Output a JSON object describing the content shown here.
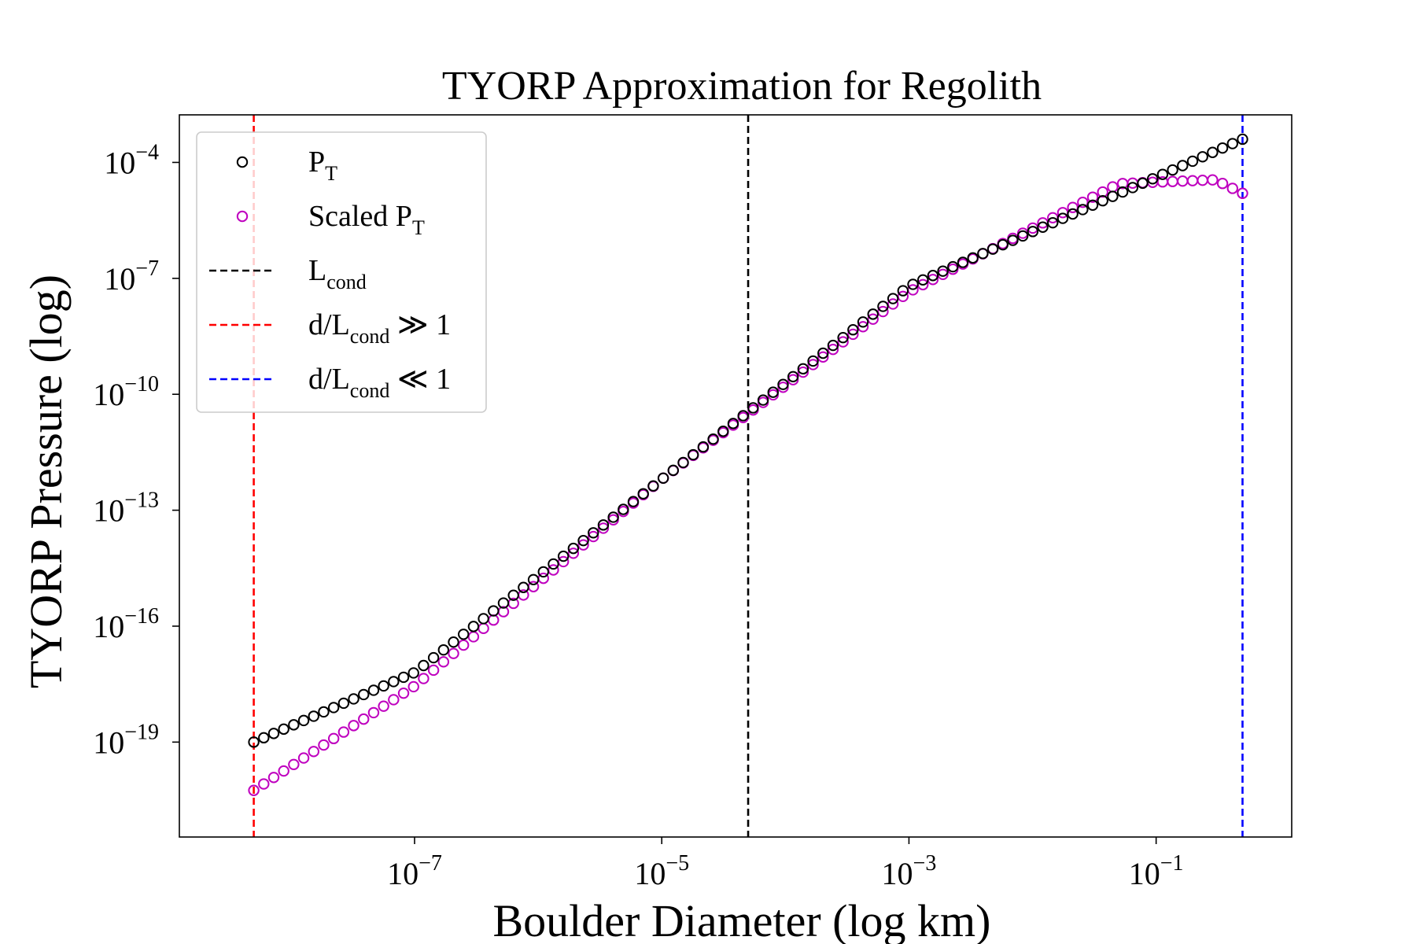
{
  "chart_data": {
    "type": "scatter",
    "title": "TYORP Approximation for Regolith",
    "xlabel": "Boulder Diameter (log km)",
    "ylabel": "TYORP Pressure (log)",
    "x_scale": "log",
    "y_scale": "log",
    "xlim": [
      1.25e-09,
      1.25
    ],
    "ylim": [
      3.5e-22,
      0.0017
    ],
    "x_ticks": [
      {
        "base": "10",
        "exp": "−7",
        "value": 1e-07
      },
      {
        "base": "10",
        "exp": "−5",
        "value": 1e-05
      },
      {
        "base": "10",
        "exp": "−3",
        "value": 0.001
      },
      {
        "base": "10",
        "exp": "−1",
        "value": 0.1
      }
    ],
    "y_ticks": [
      {
        "base": "10",
        "exp": "−19",
        "value": 1e-19
      },
      {
        "base": "10",
        "exp": "−16",
        "value": 1e-16
      },
      {
        "base": "10",
        "exp": "−13",
        "value": 1e-13
      },
      {
        "base": "10",
        "exp": "−10",
        "value": 1e-10
      },
      {
        "base": "10",
        "exp": "−7",
        "value": 1e-07
      },
      {
        "base": "10",
        "exp": "−4",
        "value": 0.0001
      }
    ],
    "legend_position": "top-left",
    "series": [
      {
        "name": "P_T",
        "label_main": "P",
        "label_sub": "T",
        "label_prefix": "",
        "label_suffix": "",
        "color": "#000000",
        "marker": "open-circle",
        "count": 100,
        "x_range": [
          5e-09,
          0.5
        ],
        "log10_y_at_x": [
          [
            5e-09,
            -19.0
          ],
          [
            1e-07,
            -17.2
          ],
          [
            1e-05,
            -12.2
          ],
          [
            0.001,
            -7.2
          ],
          [
            0.5,
            -3.4
          ]
        ]
      },
      {
        "name": "Scaled P_T",
        "label_main": "Scaled P",
        "label_sub": "T",
        "label_prefix": "",
        "label_suffix": "",
        "color": "#bf00bf",
        "marker": "open-circle",
        "count": 100,
        "x_range": [
          5e-09,
          0.5
        ],
        "log10_y_at_x": [
          [
            5e-09,
            -20.25
          ],
          [
            1e-07,
            -17.55
          ],
          [
            1e-05,
            -12.2
          ],
          [
            0.001,
            -7.35
          ],
          [
            0.05,
            -4.55
          ],
          [
            0.3,
            -4.45
          ],
          [
            0.5,
            -4.8
          ]
        ]
      }
    ],
    "vlines": [
      {
        "name": "L_cond",
        "label_prefix": "",
        "label_main": "L",
        "label_sub": "cond",
        "label_suffix": "",
        "x": 5e-05,
        "color": "#000000",
        "style": "dashed"
      },
      {
        "name": "d/L_cond ≫ 1",
        "label_prefix": "d/",
        "label_main": "L",
        "label_sub": "cond",
        "label_suffix": " ≫ 1",
        "x": 5e-09,
        "color": "#ff0000",
        "style": "dashed"
      },
      {
        "name": "d/L_cond ≪ 1",
        "label_prefix": "d/",
        "label_main": "L",
        "label_sub": "cond",
        "label_suffix": " ≪ 1",
        "x": 0.5,
        "color": "#0000ff",
        "style": "dashed"
      }
    ]
  }
}
